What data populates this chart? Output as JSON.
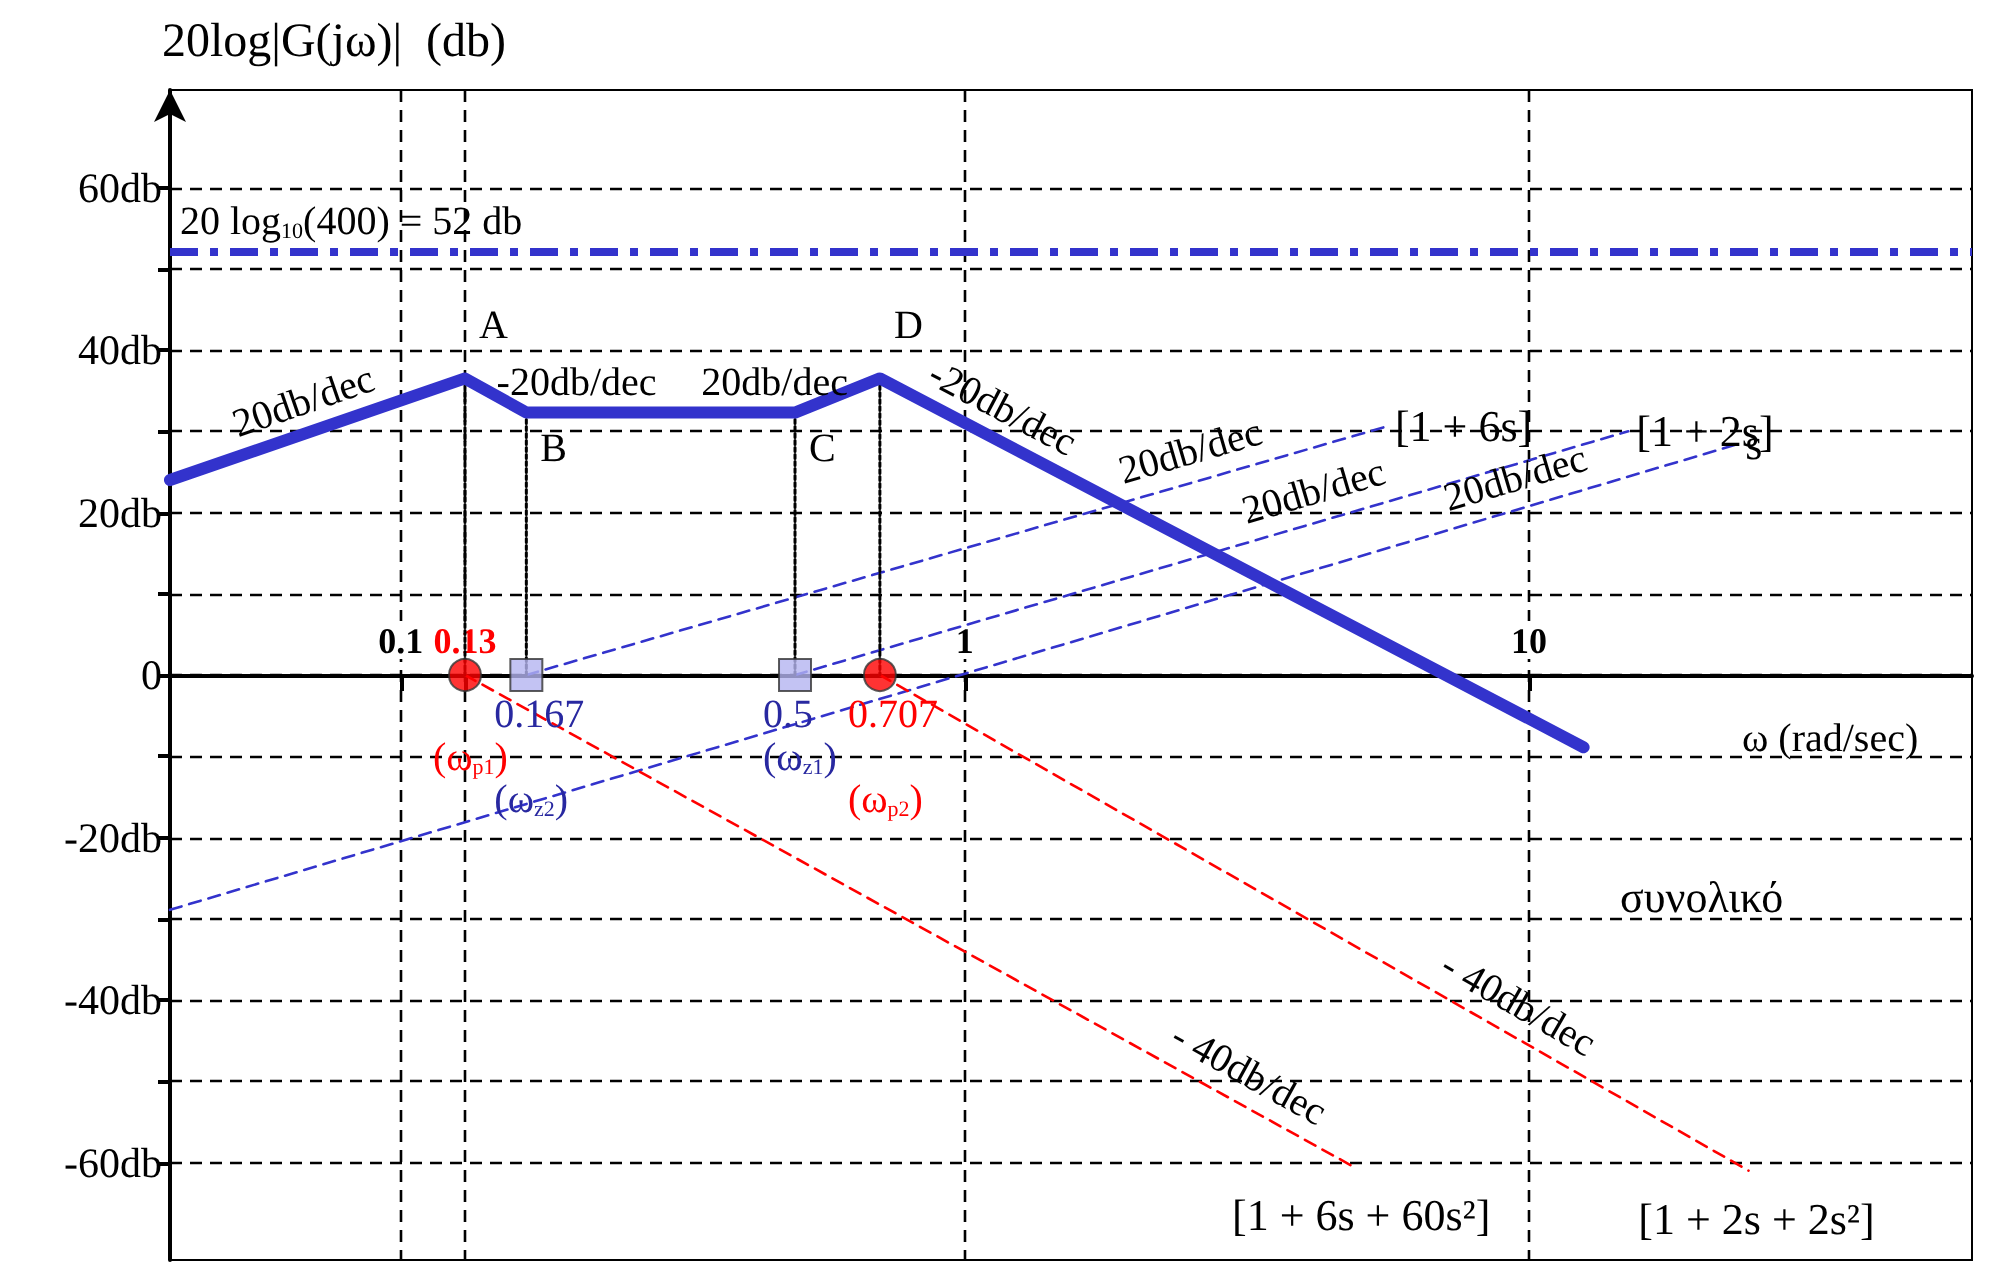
{
  "chart_data": {
    "type": "line",
    "xlabel": "ω (rad/sec)",
    "ylabel": "20log|G(jω)|  (db)",
    "log": "x",
    "xlim": [
      0.039,
      61
    ],
    "xticks": [
      0.1,
      0.13,
      1,
      10
    ],
    "ylim": [
      -72,
      72
    ],
    "yticks": [
      {
        "value": 60,
        "label": "60db"
      },
      {
        "value": 50,
        "label": null
      },
      {
        "value": 40,
        "label": "40db"
      },
      {
        "value": 30,
        "label": null
      },
      {
        "value": 20,
        "label": "20db"
      },
      {
        "value": 10,
        "label": null
      },
      0,
      {
        "value": -10,
        "label": null
      },
      {
        "value": -20,
        "label": "-20db"
      },
      {
        "value": -30,
        "label": null
      },
      {
        "value": -40,
        "label": "-40db"
      },
      {
        "value": -50,
        "label": null
      },
      {
        "value": -60,
        "label": "-60db"
      }
    ],
    "grid": true,
    "series": [
      {
        "name": "συνολικό",
        "color": "#3333cc",
        "x": [
          0.039,
          0.13,
          0.167,
          0.5,
          0.707,
          12.5
        ],
        "values": [
          24,
          36.5,
          32.3,
          32.3,
          36.5,
          -8.9
        ],
        "marker": "none",
        "line_style": "solid"
      },
      {
        "name": "[1 + 6s]",
        "color": "#3333cc",
        "x": [
          0.167,
          5.6
        ],
        "values": [
          0,
          30.6
        ],
        "marker": "none",
        "line_style": "dashed"
      },
      {
        "name": "[1 + 2s]",
        "color": "#3333cc",
        "x": [
          0.5,
          15
        ],
        "values": [
          0,
          30
        ],
        "marker": "none",
        "line_style": "dashed"
      },
      {
        "name": "s",
        "color": "#3333cc",
        "x": [
          0.039,
          23.4
        ],
        "values": [
          -28.9,
          28.4
        ],
        "marker": "none",
        "line_style": "dashed"
      },
      {
        "name": "[1 + 6s + 60s²]",
        "color": "#ff0000",
        "x": [
          0.13,
          4.88
        ],
        "values": [
          0,
          -60.5
        ],
        "marker": "none",
        "line_style": "dashed"
      },
      {
        "name": "[1 + 2s + 2s²]",
        "color": "#ff0000",
        "x": [
          0.707,
          24.5
        ],
        "values": [
          0,
          -61
        ],
        "marker": "none",
        "line_style": "dashed"
      },
      {
        "color": "#000000",
        "x": [
          0.13,
          0.13
        ],
        "values": [
          36.5,
          0
        ],
        "marker": "none",
        "line_style": "dotted"
      },
      {
        "color": "#000000",
        "x": [
          0.167,
          0.167
        ],
        "values": [
          32.3,
          0
        ],
        "marker": "none",
        "line_style": "dotted"
      },
      {
        "color": "#000000",
        "x": [
          0.5,
          0.5
        ],
        "values": [
          32.3,
          0
        ],
        "marker": "none",
        "line_style": "dotted"
      },
      {
        "color": "#000000",
        "x": [
          0.707,
          0.707
        ],
        "values": [
          36.5,
          0
        ],
        "marker": "none",
        "line_style": "dotted"
      },
      {
        "type": "scatter",
        "color": "#ff0000",
        "x": [
          0.13,
          0.707
        ],
        "values": [
          0,
          0
        ],
        "marker": "circle"
      },
      {
        "type": "scatter",
        "color": "#b4b4f0",
        "x": [
          0.167,
          0.5
        ],
        "values": [
          0,
          0
        ],
        "marker": "square"
      }
    ],
    "ref_lines": [
      {
        "axis": "y",
        "value": 52,
        "label": "20 log$_{10}$(400) = 52 db",
        "color": "#3333cc",
        "line_style": "dashed"
      }
    ],
    "annotations": [
      {
        "text": "20db/dec",
        "x": 0.07,
        "y": 30.1
      },
      {
        "text": "-20db/dec",
        "x": 0.205,
        "y": 32.3
      },
      {
        "text": "20db/dec",
        "x": 0.46,
        "y": 32.3
      },
      {
        "text": "-20db/dec",
        "x": 1.1,
        "y": 29.5
      },
      {
        "text": "20db/dec",
        "x": 2.6,
        "y": 23.9
      },
      {
        "text": "20db/dec",
        "x": 4.3,
        "y": 18.98
      },
      {
        "text": "20db/dec",
        "x": 9.8,
        "y": 20.6
      },
      {
        "text": "- 40db/dec",
        "x": 9,
        "y": -43.8
      },
      {
        "text": "- 40db/dec",
        "x": 3,
        "y": -52.4
      },
      {
        "text": "A",
        "x": 0.13,
        "y": 36.5
      },
      {
        "text": "B",
        "x": 0.167,
        "y": 32.3
      },
      {
        "text": "C",
        "x": 0.5,
        "y": 32.3
      },
      {
        "text": "D",
        "x": 0.707,
        "y": 36.5
      },
      {
        "text": "0.167",
        "x": 0.167,
        "y": 0
      },
      {
        "text": "0.5",
        "x": 0.5,
        "y": 0
      },
      {
        "text": "0.707",
        "x": 0.707,
        "y": 0
      },
      {
        "text": "(ω$_{p1}$)",
        "x": 0.13,
        "y": 0
      },
      {
        "text": "(ω$_{z2}$)",
        "x": 0.167,
        "y": 0
      },
      {
        "text": "(ω$_{z1}$)",
        "x": 0.5,
        "y": 0
      },
      {
        "text": "(ω$_{p2}$)",
        "x": 0.707,
        "y": 0
      }
    ]
  }
}
